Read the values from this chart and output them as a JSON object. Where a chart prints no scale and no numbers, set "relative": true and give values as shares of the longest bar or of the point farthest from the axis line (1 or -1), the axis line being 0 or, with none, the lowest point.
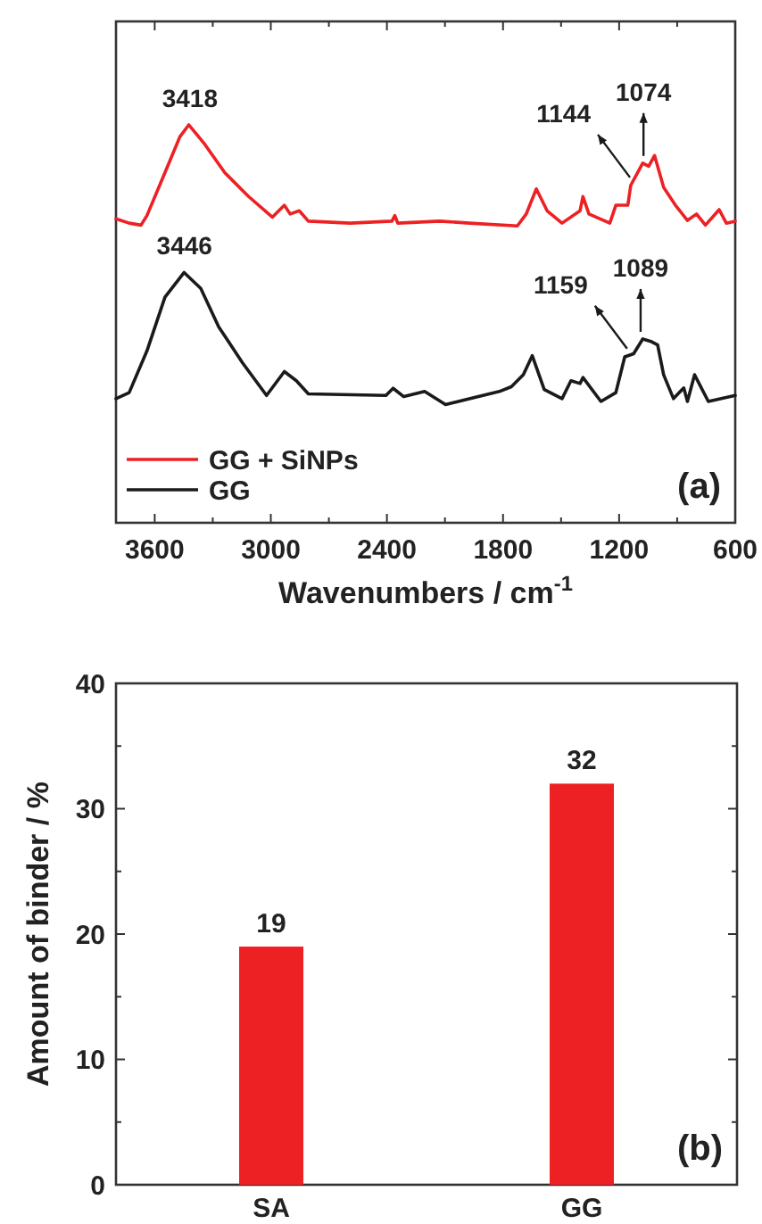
{
  "chart_data": [
    {
      "type": "line",
      "relative": true,
      "xlabel": "Wavenumbers / cm$^{-1}$",
      "xlim": [
        3800,
        600
      ],
      "xticks": [
        3600,
        {
          "value": 3300,
          "label": null
        },
        3000,
        {
          "value": 2700,
          "label": null
        },
        2400,
        {
          "value": 2100,
          "label": null
        },
        1800,
        {
          "value": 1500,
          "label": null
        },
        1200,
        {
          "value": 900,
          "label": null
        },
        600
      ],
      "tick_labels": "x",
      "legend": "bottom left",
      "series": [
        {
          "name": "GG + SiNPs",
          "color": "#ed2024",
          "x": [
            3800,
            3732,
            3671,
            3640,
            3547,
            3470,
            3424,
            3347,
            3238,
            3115,
            2992,
            2930,
            2900,
            2853,
            2806,
            2590,
            2374,
            2359,
            2344,
            2128,
            1973,
            1726,
            1680,
            1628,
            1572,
            1495,
            1402,
            1387,
            1356,
            1248,
            1217,
            1155,
            1140,
            1078,
            1047,
            1017,
            970,
            909,
            847,
            800,
            754,
            683,
            646,
            600
          ],
          "values": [
            0.764,
            0.753,
            0.748,
            0.772,
            0.88,
            0.97,
            1,
            0.955,
            0.88,
            0.82,
            0.768,
            0.798,
            0.776,
            0.784,
            0.758,
            0.753,
            0.758,
            0.772,
            0.753,
            0.758,
            0.753,
            0.746,
            0.776,
            0.839,
            0.784,
            0.753,
            0.784,
            0.82,
            0.776,
            0.753,
            0.798,
            0.798,
            0.848,
            0.904,
            0.896,
            0.923,
            0.843,
            0.798,
            0.76,
            0.776,
            0.748,
            0.787,
            0.753,
            0.758
          ]
        },
        {
          "name": "GG",
          "color": "#1a1a1a",
          "x": [
            3800,
            3732,
            3640,
            3547,
            3448,
            3362,
            3269,
            3146,
            3022,
            2930,
            2868,
            2806,
            2405,
            2368,
            2313,
            2205,
            2097,
            1819,
            1757,
            1695,
            1649,
            1587,
            1495,
            1449,
            1402,
            1387,
            1294,
            1217,
            1171,
            1125,
            1078,
            1032,
            1001,
            970,
            919,
            866,
            847,
            810,
            739,
            600
          ],
          "values": [
            0.312,
            0.327,
            0.432,
            0.567,
            0.629,
            0.589,
            0.492,
            0.402,
            0.32,
            0.38,
            0.357,
            0.324,
            0.32,
            0.338,
            0.317,
            0.33,
            0.297,
            0.33,
            0.342,
            0.372,
            0.42,
            0.335,
            0.312,
            0.357,
            0.35,
            0.365,
            0.305,
            0.327,
            0.417,
            0.425,
            0.462,
            0.455,
            0.447,
            0.372,
            0.312,
            0.339,
            0.305,
            0.372,
            0.305,
            0.32
          ]
        }
      ],
      "annotations": [
        {
          "text": "3418",
          "x": 3418,
          "y": 1
        },
        {
          "text": "1144",
          "x": 1144,
          "y": 0.85
        },
        {
          "text": "1074",
          "x": 1074,
          "y": 0.904
        },
        {
          "text": "3446",
          "x": 3446,
          "y": 0.629
        },
        {
          "text": "1159",
          "x": 1159,
          "y": 0.42
        },
        {
          "text": "1089",
          "x": 1089,
          "y": 0.462
        },
        "(a)"
      ]
    },
    {
      "type": "bar",
      "categories": [
        "SA",
        "GG"
      ],
      "values": [
        19,
        32
      ],
      "color": "#ed2024",
      "ylabel": "Amount of binder / %",
      "ylim": [
        0,
        40
      ],
      "yticks": [
        0,
        {
          "value": 5,
          "label": null
        },
        10,
        {
          "value": 15,
          "label": null
        },
        20,
        {
          "value": 25,
          "label": null
        },
        30,
        {
          "value": 35,
          "label": null
        },
        40
      ],
      "data_labels": true,
      "annotations": [
        "(b)"
      ]
    }
  ]
}
